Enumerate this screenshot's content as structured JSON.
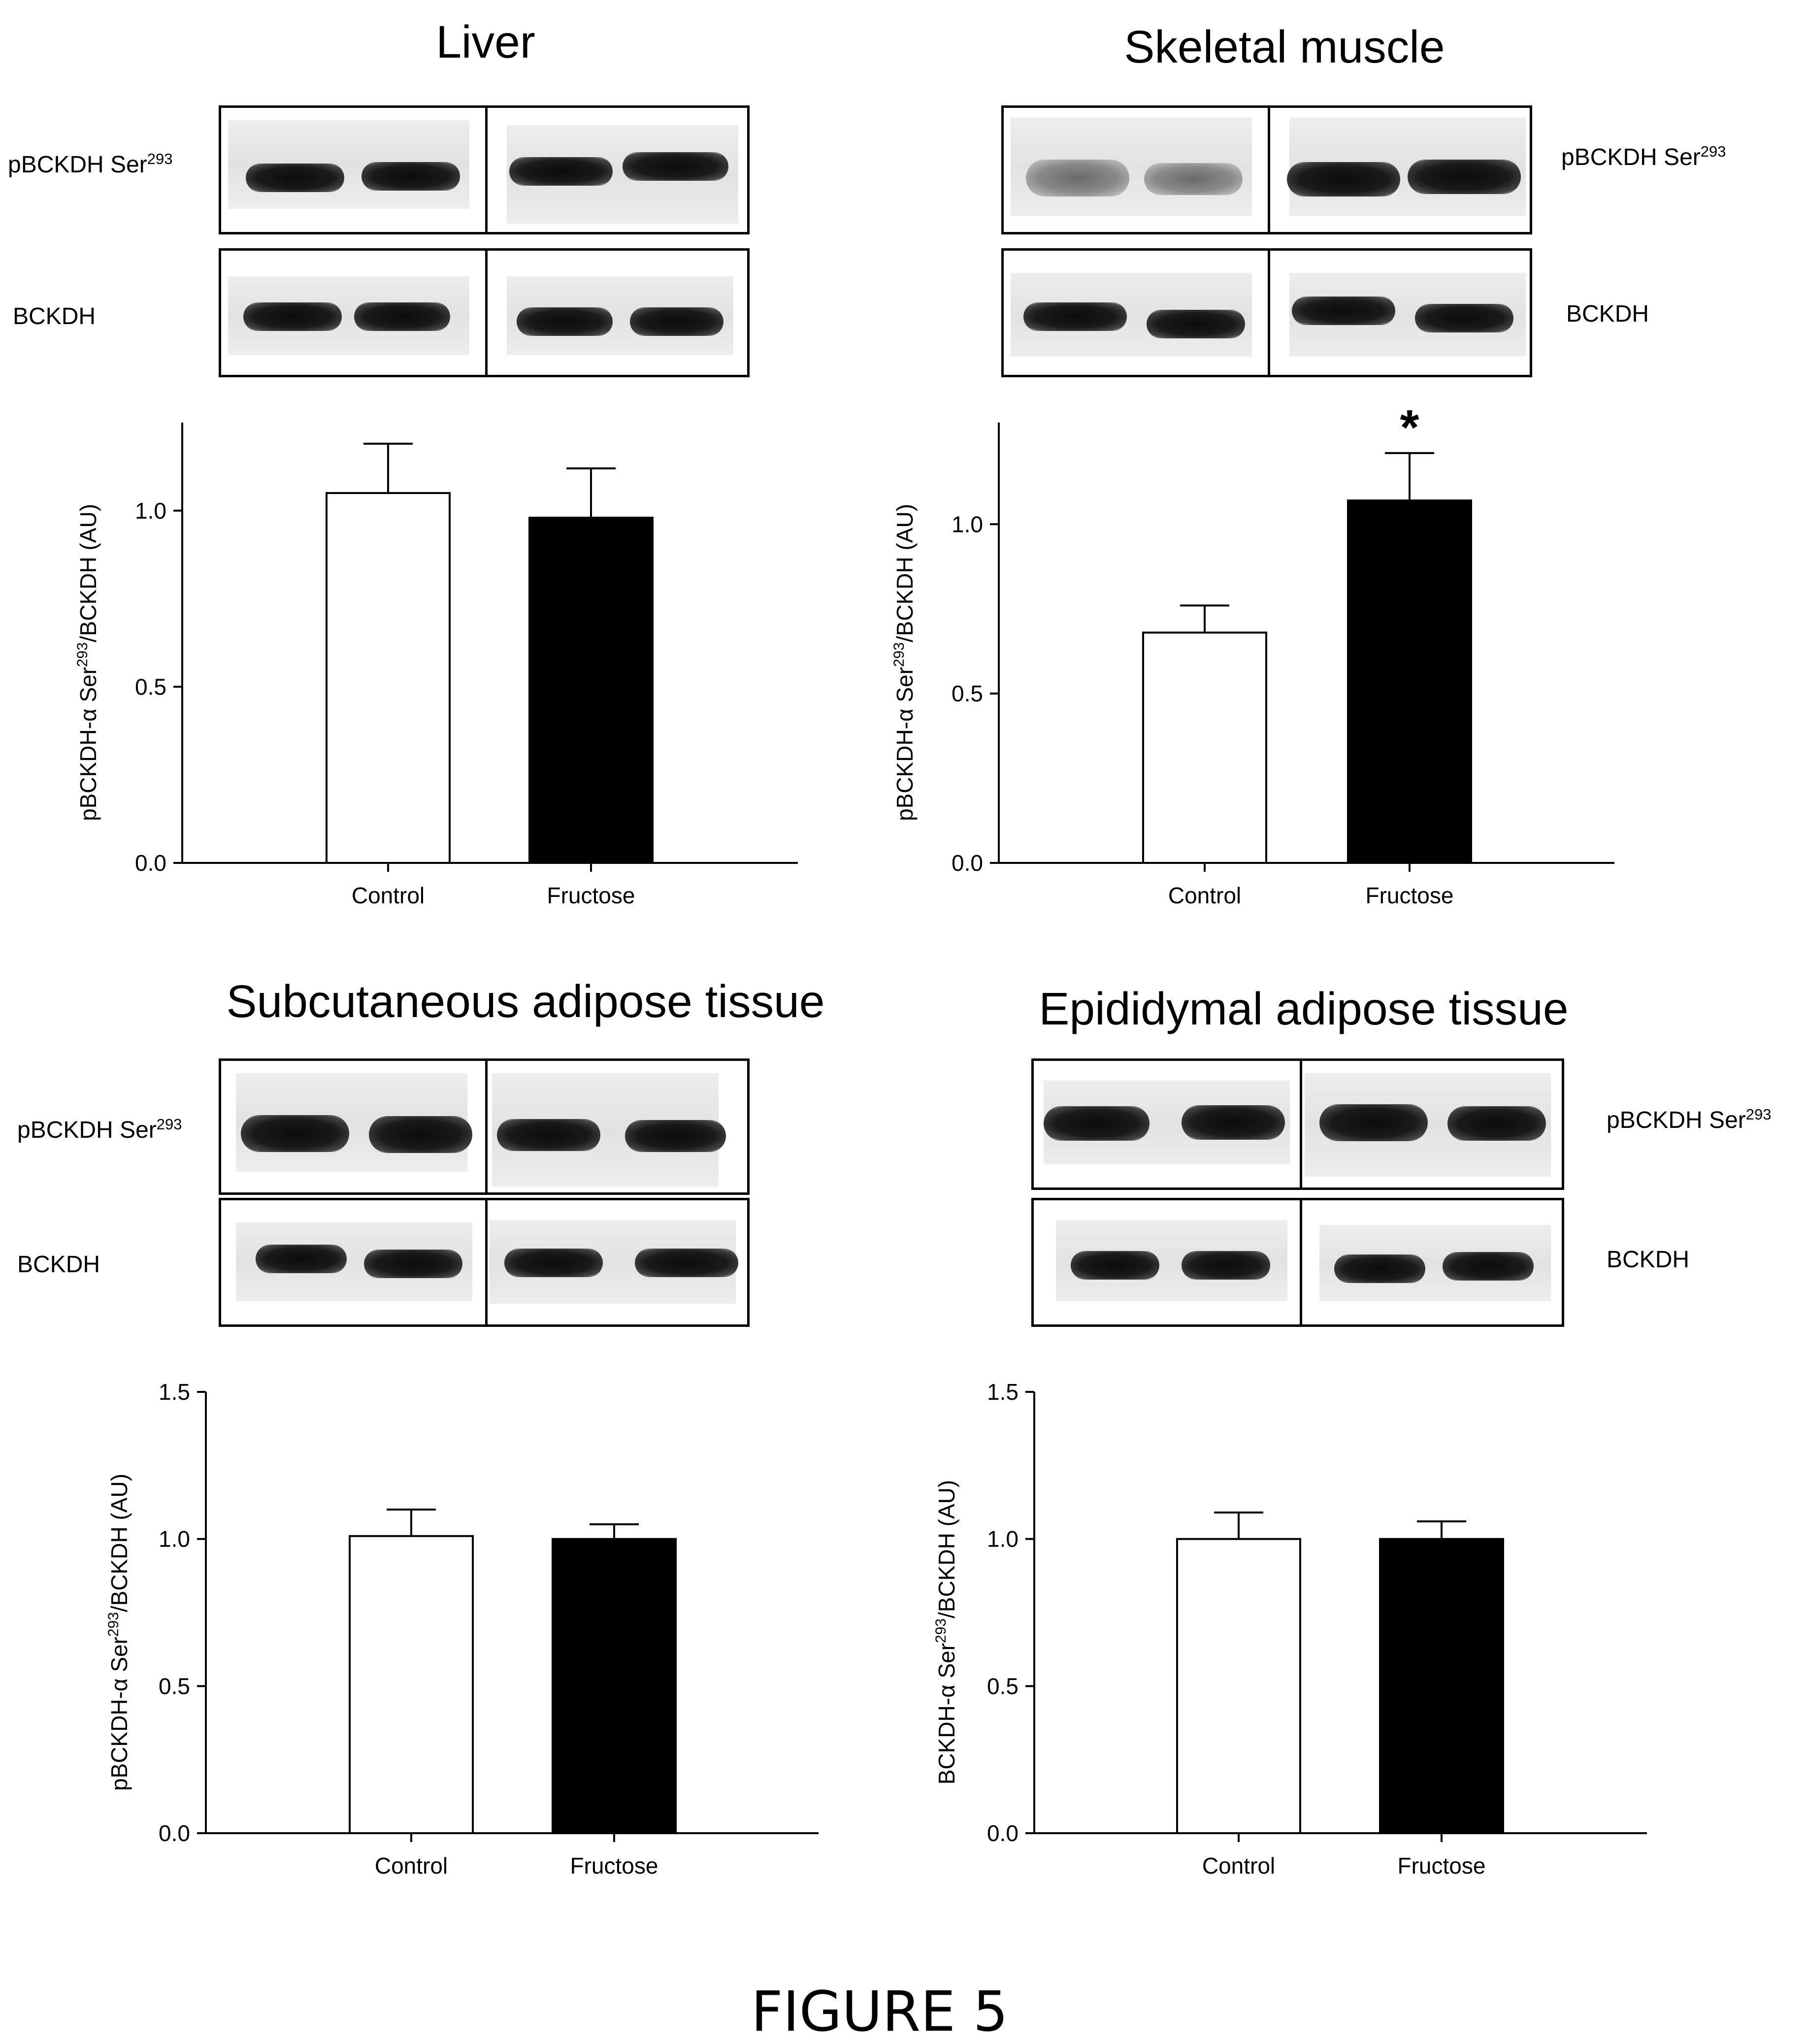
{
  "figure_label": "FIGURE 5",
  "blot_labels": {
    "phospho_prefix": "pBCKDH Ser",
    "phospho_sup": "293",
    "total": "BCKDH"
  },
  "colors": {
    "control_bar": "#ffffff",
    "fructose_bar": "#000000",
    "axis": "#000000"
  },
  "chart_data": [
    {
      "type": "bar",
      "title": "Liver",
      "categories": [
        "Control",
        "Fructose"
      ],
      "values": [
        1.05,
        0.98
      ],
      "errors": [
        0.14,
        0.14
      ],
      "bar_colors": [
        "#ffffff",
        "#000000"
      ],
      "ylim": [
        0,
        1.25
      ],
      "yticks": [
        0.0,
        0.5,
        1.0
      ],
      "ytick_labels": [
        "0.0",
        "0.5",
        "1.0"
      ],
      "ylabel": {
        "pre": "pBCKDH-α Ser",
        "sup": "293",
        "post": "/BCKDH (AU)"
      },
      "annotations": []
    },
    {
      "type": "bar",
      "title": "Skeletal muscle",
      "categories": [
        "Control",
        "Fructose"
      ],
      "values": [
        0.68,
        1.07
      ],
      "errors": [
        0.08,
        0.14
      ],
      "bar_colors": [
        "#ffffff",
        "#000000"
      ],
      "ylim": [
        0,
        1.3
      ],
      "yticks": [
        0.0,
        0.5,
        1.0
      ],
      "ytick_labels": [
        "0.0",
        "0.5",
        "1.0"
      ],
      "ylabel": {
        "pre": "pBCKDH-α Ser",
        "sup": "293",
        "post": "/BCKDH (AU)"
      },
      "annotations": [
        {
          "category": "Fructose",
          "text": "*"
        }
      ]
    },
    {
      "type": "bar",
      "title": "Subcutaneous adipose tissue",
      "categories": [
        "Control",
        "Fructose"
      ],
      "values": [
        1.01,
        1.0
      ],
      "errors": [
        0.09,
        0.05
      ],
      "bar_colors": [
        "#ffffff",
        "#000000"
      ],
      "ylim": [
        0,
        1.5
      ],
      "yticks": [
        0.0,
        0.5,
        1.0,
        1.5
      ],
      "ytick_labels": [
        "0.0",
        "0.5",
        "1.0",
        "1.5"
      ],
      "ylabel": {
        "pre": "pBCKDH-α Ser",
        "sup": "293",
        "post": "/BCKDH (AU)"
      },
      "annotations": []
    },
    {
      "type": "bar",
      "title": "Epididymal adipose tissue",
      "categories": [
        "Control",
        "Fructose"
      ],
      "values": [
        1.0,
        1.0
      ],
      "errors": [
        0.09,
        0.06
      ],
      "bar_colors": [
        "#ffffff",
        "#000000"
      ],
      "ylim": [
        0,
        1.5
      ],
      "yticks": [
        0.0,
        0.5,
        1.0,
        1.5
      ],
      "ytick_labels": [
        "0.0",
        "0.5",
        "1.0",
        "1.5"
      ],
      "ylabel": {
        "pre": "BCKDH-α Ser",
        "sup": "293",
        "post": "/BCKDH (AU)"
      },
      "annotations": []
    }
  ]
}
